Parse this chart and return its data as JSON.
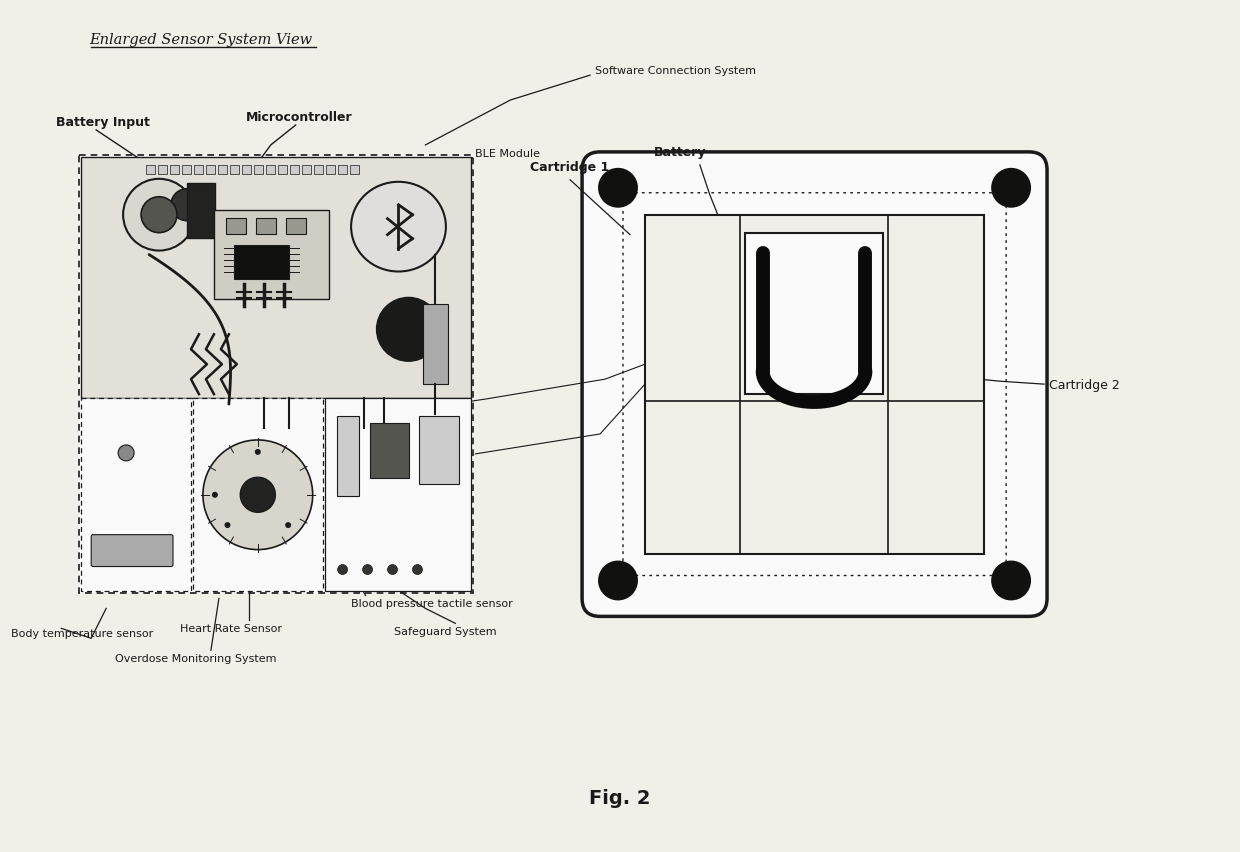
{
  "bg_color": "#f0efe8",
  "title_text": "Fig. 2",
  "diagram_title": "Enlarged Sensor System View",
  "labels": {
    "battery_input": "Battery Input",
    "microcontroller": "Microcontroller",
    "software_conn": "Software Connection System",
    "ble_module": "BLE Module",
    "cartridge1": "Cartridge 1",
    "battery": "Battery",
    "cartridge2": "Cartridge 2",
    "heart_rate": "Heart Rate Sensor",
    "blood_pressure": "Blood pressure tactile sensor",
    "body_temp": "Body temperature sensor",
    "overdose": "Overdose Monitoring System",
    "safeguard": "Safeguard System"
  },
  "color_main": "#1a1a1a",
  "color_gray": "#888888",
  "color_dark": "#333333",
  "color_pcb": "#d4d4c8",
  "color_white": "#fafafa"
}
